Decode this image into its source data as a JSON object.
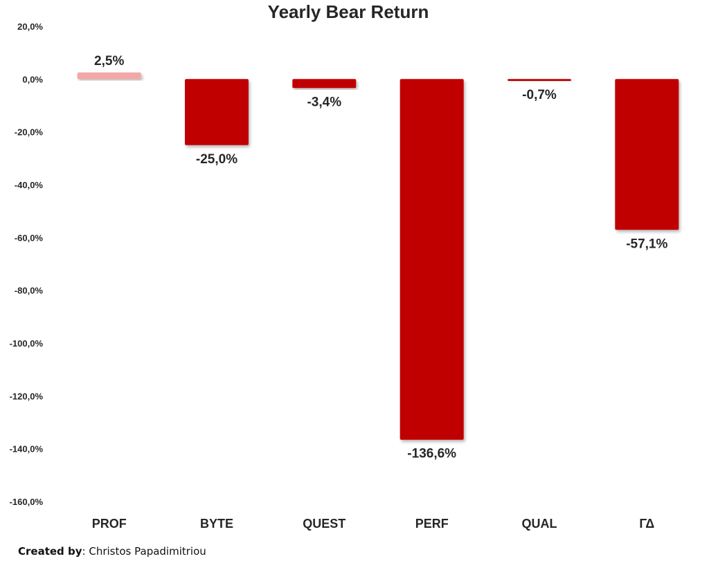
{
  "chart_data": {
    "type": "bar",
    "title": "Yearly Bear Return",
    "categories": [
      "PROF",
      "BYTE",
      "QUEST",
      "PERF",
      "QUAL",
      "ΓΔ"
    ],
    "values": [
      2.5,
      -25.0,
      -3.4,
      -136.6,
      -0.7,
      -57.1
    ],
    "data_labels": [
      "2,5%",
      "-25,0%",
      "-3,4%",
      "-136,6%",
      "-0,7%",
      "-57,1%"
    ],
    "ylim": [
      -160,
      20
    ],
    "yticks": [
      20,
      0,
      -20,
      -40,
      -60,
      -80,
      -100,
      -120,
      -140,
      -160
    ],
    "ytick_labels": [
      "20,0%",
      "0,0%",
      "-20,0%",
      "-40,0%",
      "-60,0%",
      "-80,0%",
      "-100,0%",
      "-120,0%",
      "-140,0%",
      "-160,0%"
    ],
    "xlabel": "",
    "ylabel": "",
    "grid": false,
    "legend": "none",
    "colors": {
      "positive": "#f4a7a7",
      "negative": "#c00000"
    }
  },
  "credit": {
    "label": "Created by",
    "separator": ": ",
    "author": "Christos Papadimitriou"
  }
}
